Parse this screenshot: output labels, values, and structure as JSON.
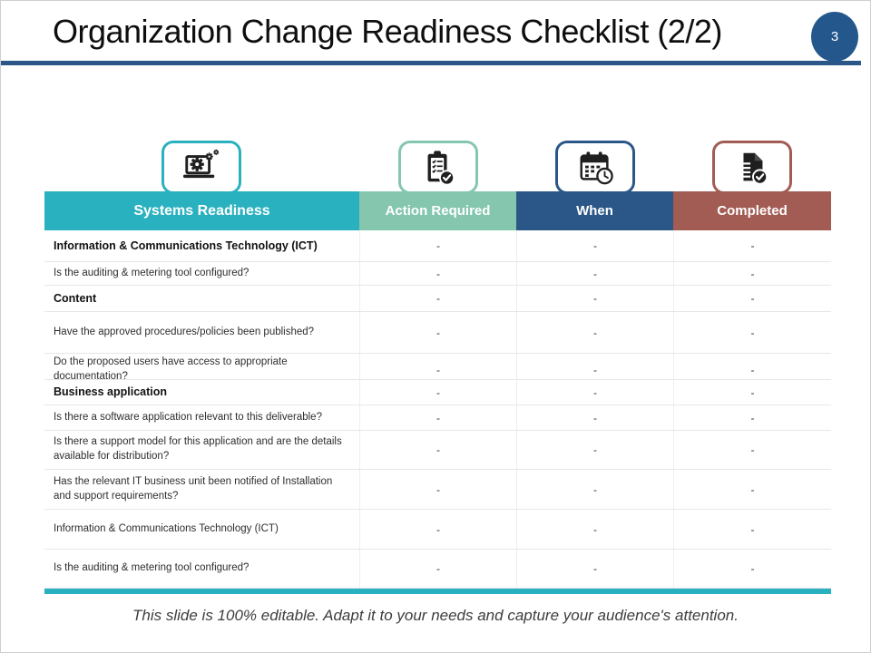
{
  "slide": {
    "title": "Organization Change Readiness Checklist (2/2)",
    "page_number": "3",
    "footer": "This slide is 100% editable. Adapt it to your needs and capture your audience's attention."
  },
  "colors": {
    "teal": "#2ab1bf",
    "sage": "#85c6af",
    "blue": "#2a5788",
    "maroon": "#a25c54",
    "badge_blue": "#24588c",
    "rule_blue": "#2a5788",
    "bottom_bar": "#2ab1bf"
  },
  "icons": [
    {
      "name": "laptop-gears-icon",
      "color": "#2ab1bf"
    },
    {
      "name": "clipboard-check-icon",
      "color": "#85c6af"
    },
    {
      "name": "calendar-clock-icon",
      "color": "#2a5788"
    },
    {
      "name": "document-check-icon",
      "color": "#a25c54"
    }
  ],
  "table": {
    "columns": [
      {
        "label": "Systems Readiness",
        "color": "#2ab1bf"
      },
      {
        "label": "Action Required",
        "color": "#85c6af"
      },
      {
        "label": "When",
        "color": "#2a5788"
      },
      {
        "label": "Completed",
        "color": "#a25c54"
      }
    ],
    "rows": [
      {
        "label": "Information & Communications  Technology  (ICT)",
        "bold": true,
        "values": [
          "-",
          "-",
          "-"
        ]
      },
      {
        "label": "Is the auditing & metering tool configured?",
        "bold": false,
        "values": [
          "-",
          "-",
          "-"
        ]
      },
      {
        "label": "Content",
        "bold": true,
        "values": [
          "-",
          "-",
          "-"
        ]
      },
      {
        "label": "Have the approved procedures/policies been published?",
        "bold": false,
        "values": [
          "-",
          "-",
          "-"
        ]
      },
      {
        "label": "Do the proposed users have access to appropriate documentation?",
        "bold": false,
        "values": [
          "-",
          "-",
          "-"
        ]
      },
      {
        "label": "Business application",
        "bold": true,
        "values": [
          "-",
          "-",
          "-"
        ]
      },
      {
        "label": "Is there a software application relevant to this deliverable?",
        "bold": false,
        "values": [
          "-",
          "-",
          "-"
        ]
      },
      {
        "label": "Is there a support model for this application and are the details available for distribution?",
        "bold": false,
        "values": [
          "-",
          "-",
          "-"
        ]
      },
      {
        "label": "Has the relevant IT business unit been notified of Installation and support requirements?",
        "bold": false,
        "values": [
          "-",
          "-",
          "-"
        ]
      },
      {
        "label": "Information & Communications Technology (ICT)",
        "bold": false,
        "values": [
          "-",
          "-",
          "-"
        ]
      },
      {
        "label": "Is the auditing & metering tool configured?",
        "bold": false,
        "values": [
          "-",
          "-",
          "-"
        ]
      }
    ]
  }
}
